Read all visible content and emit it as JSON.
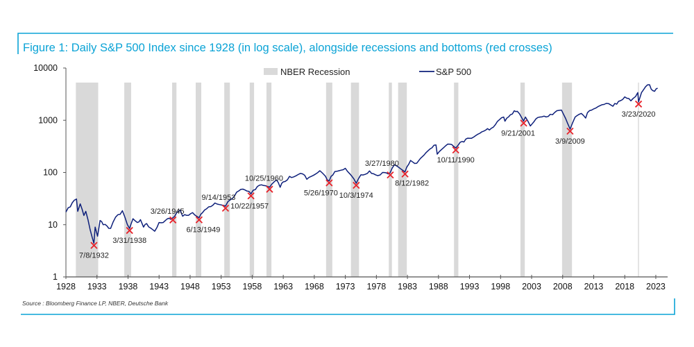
{
  "title": "Figure 1: Daily S&P 500 Index since 1928 (in log scale), alongside recessions and bottoms (red crosses)",
  "source": "Source : Bloomberg Finance LP, NBER, Deutsche Bank",
  "colors": {
    "accent": "#0aa3d6",
    "series": "#0d1f7a",
    "recession": "#d9d9d9",
    "cross": "#e8222a"
  },
  "chart_data": {
    "type": "line",
    "title": "Figure 1: Daily S&P 500 Index since 1928 (in log scale), alongside recessions and bottoms (red crosses)",
    "yscale": "log",
    "ylim": [
      1,
      10000
    ],
    "xlim": [
      1928,
      2025
    ],
    "yticks": [
      "1",
      "10",
      "100",
      "1000",
      "10000"
    ],
    "xticks": [
      "1928",
      "1933",
      "1938",
      "1943",
      "1948",
      "1953",
      "1958",
      "1963",
      "1968",
      "1973",
      "1978",
      "1983",
      "1988",
      "1993",
      "1998",
      "2003",
      "2008",
      "2013",
      "2018",
      "2023"
    ],
    "legend": {
      "recession": "NBER Recession",
      "series": "S&P 500",
      "placement": "top"
    },
    "recessions": [
      [
        1929.6,
        1933.2
      ],
      [
        1937.4,
        1938.5
      ],
      [
        1945.1,
        1945.8
      ],
      [
        1948.9,
        1949.8
      ],
      [
        1953.5,
        1954.4
      ],
      [
        1957.6,
        1958.3
      ],
      [
        1960.3,
        1961.1
      ],
      [
        1969.9,
        1970.9
      ],
      [
        1973.9,
        1975.2
      ],
      [
        1980.0,
        1980.5
      ],
      [
        1981.5,
        1982.9
      ],
      [
        1990.5,
        1991.2
      ],
      [
        2001.2,
        2001.9
      ],
      [
        2007.9,
        2009.5
      ],
      [
        2020.1,
        2020.3
      ]
    ],
    "series": [
      {
        "name": "S&P 500",
        "points": [
          [
            1928,
            17.5
          ],
          [
            1928.7,
            22
          ],
          [
            1929.7,
            31
          ],
          [
            1929.9,
            18
          ],
          [
            1930.3,
            25
          ],
          [
            1930.9,
            15
          ],
          [
            1931.2,
            18
          ],
          [
            1931.9,
            8
          ],
          [
            1932.5,
            4.4
          ],
          [
            1932.7,
            9
          ],
          [
            1933.1,
            6
          ],
          [
            1933.5,
            12
          ],
          [
            1934,
            10
          ],
          [
            1935.2,
            8.5
          ],
          [
            1936,
            14
          ],
          [
            1937.1,
            18.5
          ],
          [
            1937.9,
            10
          ],
          [
            1938.25,
            8.5
          ],
          [
            1938.8,
            13
          ],
          [
            1939.5,
            11
          ],
          [
            1940,
            12.5
          ],
          [
            1940.5,
            9
          ],
          [
            1941,
            10.5
          ],
          [
            1942.3,
            7.5
          ],
          [
            1943,
            11
          ],
          [
            1944,
            12
          ],
          [
            1945.2,
            13.5
          ],
          [
            1946.4,
            19
          ],
          [
            1946.8,
            14.5
          ],
          [
            1948.4,
            17
          ],
          [
            1949.45,
            13.6
          ],
          [
            1950,
            17
          ],
          [
            1951,
            22
          ],
          [
            1952,
            26
          ],
          [
            1953.7,
            22.7
          ],
          [
            1954.5,
            30
          ],
          [
            1955.5,
            42
          ],
          [
            1956.5,
            48
          ],
          [
            1957.8,
            39
          ],
          [
            1958.5,
            47
          ],
          [
            1959.5,
            58
          ],
          [
            1960.8,
            52.3
          ],
          [
            1961.9,
            72
          ],
          [
            1962.5,
            52
          ],
          [
            1963,
            66
          ],
          [
            1964,
            84
          ],
          [
            1966.1,
            94
          ],
          [
            1966.8,
            74
          ],
          [
            1968.9,
            108
          ],
          [
            1970.4,
            69.3
          ],
          [
            1971.3,
            104
          ],
          [
            1973,
            120
          ],
          [
            1974.75,
            62.3
          ],
          [
            1975.5,
            90
          ],
          [
            1976.9,
            107
          ],
          [
            1978.2,
            87
          ],
          [
            1979,
            100
          ],
          [
            1980.2,
            98.2
          ],
          [
            1980.9,
            140
          ],
          [
            1982.6,
            102.4
          ],
          [
            1983.5,
            170
          ],
          [
            1984.5,
            150
          ],
          [
            1986,
            240
          ],
          [
            1987.6,
            336
          ],
          [
            1987.8,
            224
          ],
          [
            1989.5,
            350
          ],
          [
            1990.8,
            295
          ],
          [
            1991.5,
            380
          ],
          [
            1993,
            450
          ],
          [
            1995,
            600
          ],
          [
            1996.5,
            700
          ],
          [
            1997.5,
            950
          ],
          [
            1998.5,
            1150
          ],
          [
            1998.7,
            960
          ],
          [
            2000.2,
            1520
          ],
          [
            2000.7,
            1480
          ],
          [
            2001.7,
            965
          ],
          [
            2002,
            1150
          ],
          [
            2002.8,
            777
          ],
          [
            2004,
            1130
          ],
          [
            2005,
            1200
          ],
          [
            2006,
            1300
          ],
          [
            2007.8,
            1565
          ],
          [
            2008.8,
            870
          ],
          [
            2009.2,
            677
          ],
          [
            2010,
            1150
          ],
          [
            2011,
            1350
          ],
          [
            2011.7,
            1100
          ],
          [
            2012,
            1400
          ],
          [
            2013,
            1650
          ],
          [
            2014,
            1900
          ],
          [
            2015,
            2100
          ],
          [
            2016.1,
            1850
          ],
          [
            2017,
            2300
          ],
          [
            2018,
            2800
          ],
          [
            2018.98,
            2350
          ],
          [
            2020.1,
            3380
          ],
          [
            2020.22,
            2237
          ],
          [
            2020.7,
            3400
          ],
          [
            2021,
            3800
          ],
          [
            2022,
            4790
          ],
          [
            2022.5,
            3700
          ],
          [
            2022.8,
            3580
          ],
          [
            2023.3,
            4100
          ]
        ]
      }
    ],
    "bottoms": [
      {
        "label": "7/8/1932",
        "x": 1932.52,
        "y": 4.4
      },
      {
        "label": "3/31/1938",
        "x": 1938.25,
        "y": 8.5
      },
      {
        "label": "3/26/1945",
        "x": 1945.23,
        "y": 13.5
      },
      {
        "label": "6/13/1949",
        "x": 1949.45,
        "y": 13.6
      },
      {
        "label": "9/14/1953",
        "x": 1953.7,
        "y": 22.7
      },
      {
        "label": "10/22/1957",
        "x": 1957.8,
        "y": 39
      },
      {
        "label": "10/25/1960",
        "x": 1960.8,
        "y": 52.3
      },
      {
        "label": "5/26/1970",
        "x": 1970.4,
        "y": 69.3
      },
      {
        "label": "10/3/1974",
        "x": 1974.75,
        "y": 62.3
      },
      {
        "label": "3/27/1980",
        "x": 1980.24,
        "y": 98.2
      },
      {
        "label": "8/12/1982",
        "x": 1982.61,
        "y": 102.4
      },
      {
        "label": "10/11/1990",
        "x": 1990.78,
        "y": 295
      },
      {
        "label": "9/21/2001",
        "x": 2001.72,
        "y": 965
      },
      {
        "label": "3/9/2009",
        "x": 2009.19,
        "y": 677
      },
      {
        "label": "3/23/2020",
        "x": 2020.22,
        "y": 2237
      }
    ]
  }
}
